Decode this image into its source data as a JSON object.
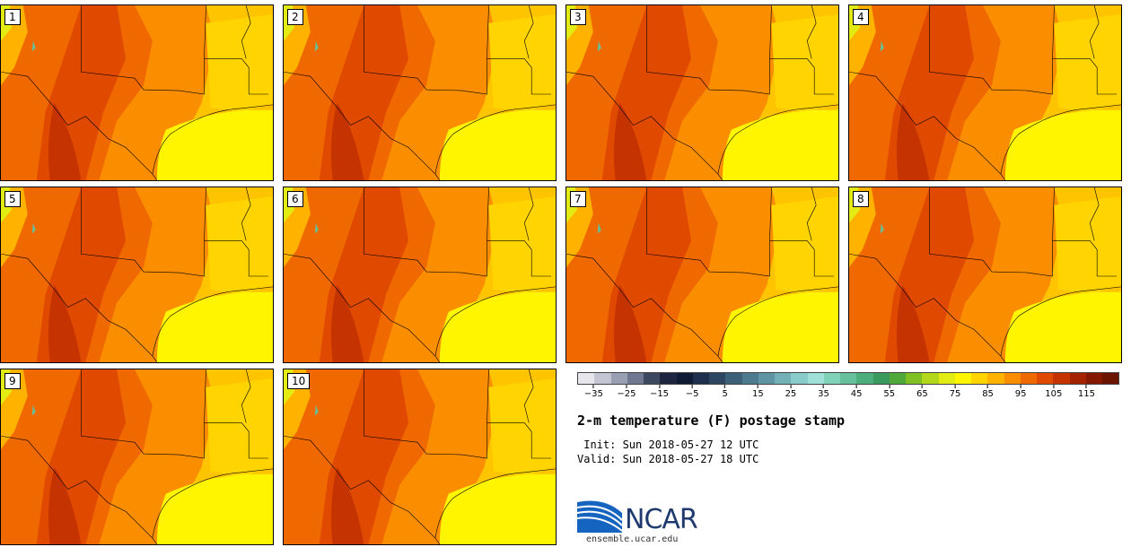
{
  "title": "2-m temperature (F) postage stamp",
  "init_line": " Init: Sun 2018-05-27 12 UTC",
  "valid_line": "Valid: Sun 2018-05-27 18 UTC",
  "logo_text": "NCAR",
  "site": "ensemble.ucar.edu",
  "members": [
    "1",
    "2",
    "3",
    "4",
    "5",
    "6",
    "7",
    "8",
    "9",
    "10"
  ],
  "colorbar": {
    "colors": [
      "#e6e6ec",
      "#c3c6d2",
      "#9aa0b3",
      "#6f7890",
      "#3c4760",
      "#1d2540",
      "#0f1a35",
      "#1c2f4d",
      "#2d4763",
      "#3d6079",
      "#4d7a8e",
      "#5e94a4",
      "#74b0b8",
      "#8acbcb",
      "#9fe0d8",
      "#80d3b8",
      "#66c09a",
      "#4cae7c",
      "#3a9a5e",
      "#4fa83a",
      "#7fc122",
      "#b3d81b",
      "#e3ec12",
      "#fff500",
      "#ffd400",
      "#ffb300",
      "#fa8e00",
      "#f06800",
      "#e04a00",
      "#c43300",
      "#a52200",
      "#861700",
      "#6b1400"
    ],
    "ticks": [
      "-35",
      "-25",
      "-15",
      "-5",
      "5",
      "15",
      "25",
      "35",
      "45",
      "55",
      "65",
      "75",
      "85",
      "95",
      "105",
      "115"
    ]
  }
}
